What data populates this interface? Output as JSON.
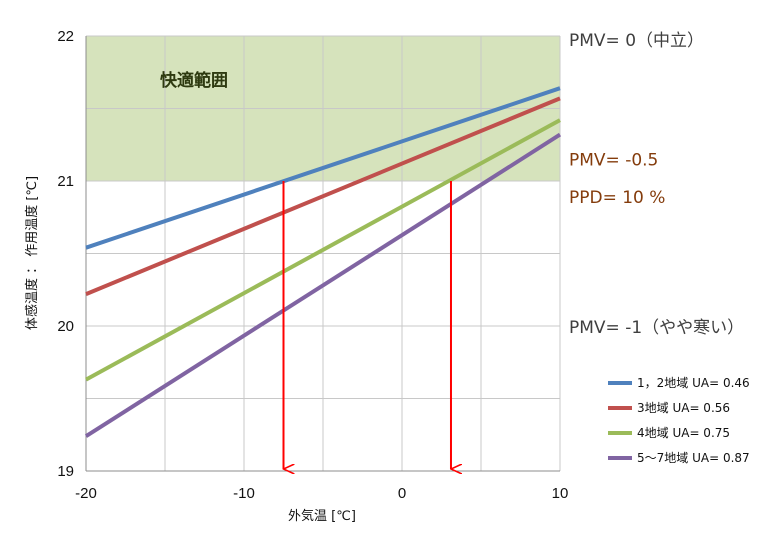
{
  "chart_data": {
    "type": "line",
    "xlabel": "外気温 [℃]",
    "ylabel": "体感温度 ： 作用温度 [℃]",
    "xlim": [
      -20,
      10
    ],
    "ylim": [
      19,
      22
    ],
    "x_ticks": [
      "-20",
      "-10",
      "0",
      "10"
    ],
    "y_ticks": [
      "19",
      "20",
      "21",
      "22"
    ],
    "grid": true,
    "legend_position": "bottom-right",
    "comfort_zone": {
      "label": "快適範囲",
      "y_from": 21,
      "y_to": 22,
      "color": "#d6e3bc"
    },
    "pmv_labels": [
      {
        "text": "PMV= 0（中立）",
        "y": 22,
        "color": "#3f3f3f"
      },
      {
        "text": "PMV= -0.5",
        "y": 21.1,
        "color": "#843c0c"
      },
      {
        "text": "PPD= 10 %",
        "y": 20.93,
        "color": "#843c0c"
      },
      {
        "text": "PMV= -1（やや寒い）",
        "y": 20,
        "color": "#3f3f3f"
      }
    ],
    "series": [
      {
        "name": "1，2地域 UA= 0.46",
        "color": "#4f81bd",
        "x": [
          -20,
          10
        ],
        "y": [
          20.54,
          21.64
        ]
      },
      {
        "name": "3地域 UA= 0.56",
        "color": "#c0504d",
        "x": [
          -20,
          10
        ],
        "y": [
          20.22,
          21.57
        ]
      },
      {
        "name": "4地域 UA= 0.75",
        "color": "#9bbb59",
        "x": [
          -20,
          10
        ],
        "y": [
          19.63,
          21.42
        ]
      },
      {
        "name": "5〜7地域 UA= 0.87",
        "color": "#8064a2",
        "x": [
          -20,
          10
        ],
        "y": [
          19.24,
          21.32
        ]
      }
    ],
    "arrows": [
      {
        "x": -7.5,
        "y_from": 21,
        "y_to": 19,
        "color": "#ff0000"
      },
      {
        "x": 3.1,
        "y_from": 21,
        "y_to": 19,
        "color": "#ff0000"
      }
    ]
  }
}
